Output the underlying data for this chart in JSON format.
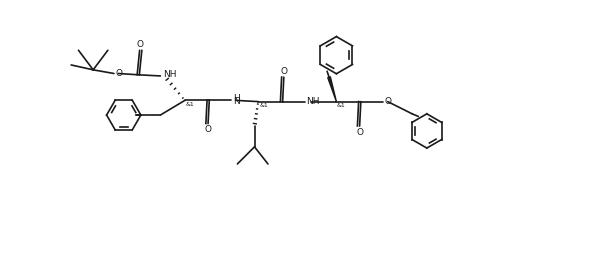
{
  "background_color": "#ffffff",
  "line_color": "#1a1a1a",
  "line_width": 1.2,
  "font_size": 6.5,
  "figsize": [
    5.97,
    2.57
  ],
  "dpi": 100,
  "xlim": [
    0,
    120
  ],
  "ylim": [
    0,
    52
  ]
}
